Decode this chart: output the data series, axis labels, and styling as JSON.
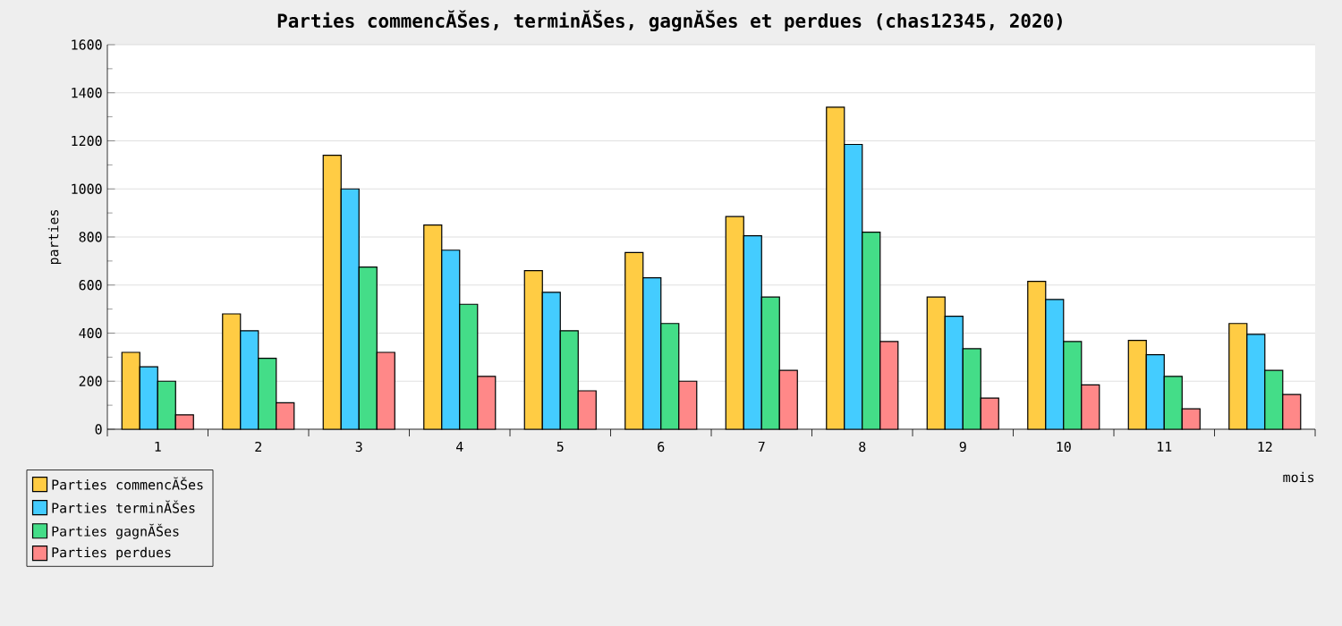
{
  "chart_data": {
    "type": "bar",
    "title": "Parties commencĂŠes, terminĂŠes, gagnĂŠes et perdues (chas12345, 2020)",
    "xlabel": "mois",
    "ylabel": "parties",
    "categories": [
      "1",
      "2",
      "3",
      "4",
      "5",
      "6",
      "7",
      "8",
      "9",
      "10",
      "11",
      "12"
    ],
    "series": [
      {
        "name": "Parties commencĂŠes",
        "color": "#ffcc44",
        "values": [
          320,
          480,
          1140,
          850,
          660,
          735,
          885,
          1340,
          550,
          615,
          370,
          440
        ]
      },
      {
        "name": "Parties terminĂŠes",
        "color": "#44ccff",
        "values": [
          260,
          410,
          1000,
          745,
          570,
          630,
          805,
          1185,
          470,
          540,
          310,
          395
        ]
      },
      {
        "name": "Parties gagnĂŠes",
        "color": "#44dd88",
        "values": [
          200,
          295,
          675,
          520,
          410,
          440,
          550,
          820,
          335,
          365,
          220,
          245
        ]
      },
      {
        "name": "Parties perdues",
        "color": "#ff8888",
        "values": [
          60,
          110,
          320,
          220,
          160,
          200,
          245,
          365,
          130,
          185,
          85,
          145
        ]
      }
    ],
    "ylim": [
      0,
      1600
    ],
    "yticks": [
      0,
      200,
      400,
      600,
      800,
      1000,
      1200,
      1400,
      1600
    ],
    "grid": "y",
    "legend": "bottom left"
  }
}
